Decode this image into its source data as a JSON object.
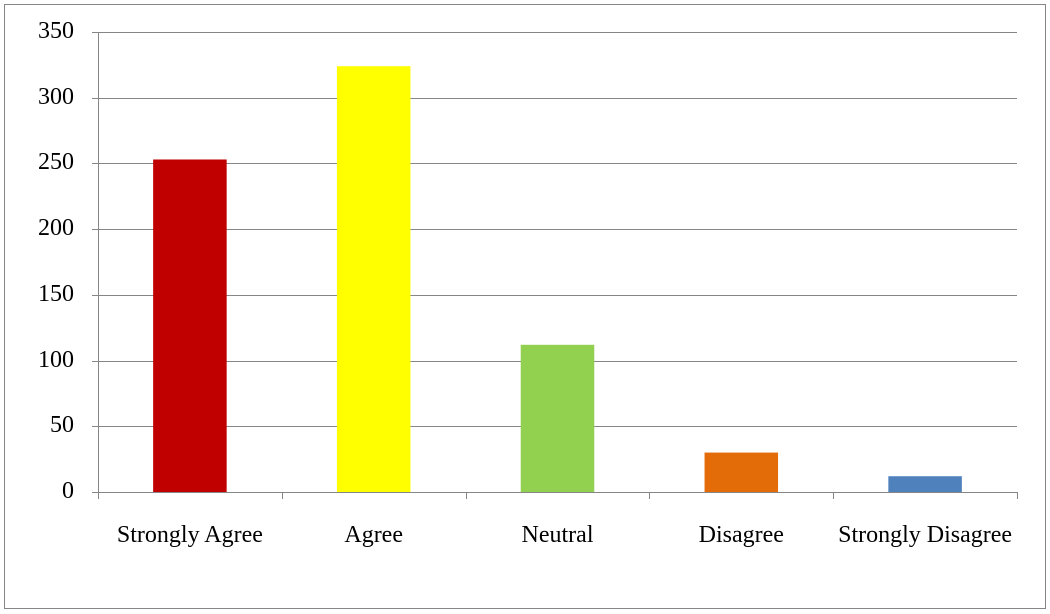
{
  "chart_data": {
    "type": "bar",
    "categories": [
      "Strongly Agree",
      "Agree",
      "Neutral",
      "Disagree",
      "Strongly Disagree"
    ],
    "values": [
      253,
      324,
      112,
      30,
      12
    ],
    "colors": [
      "#c00000",
      "#ffff00",
      "#92d050",
      "#e36c09",
      "#4f81bd"
    ],
    "ylim": [
      0,
      350
    ],
    "yticks": [
      0,
      50,
      100,
      150,
      200,
      250,
      300,
      350
    ],
    "grid": true
  }
}
